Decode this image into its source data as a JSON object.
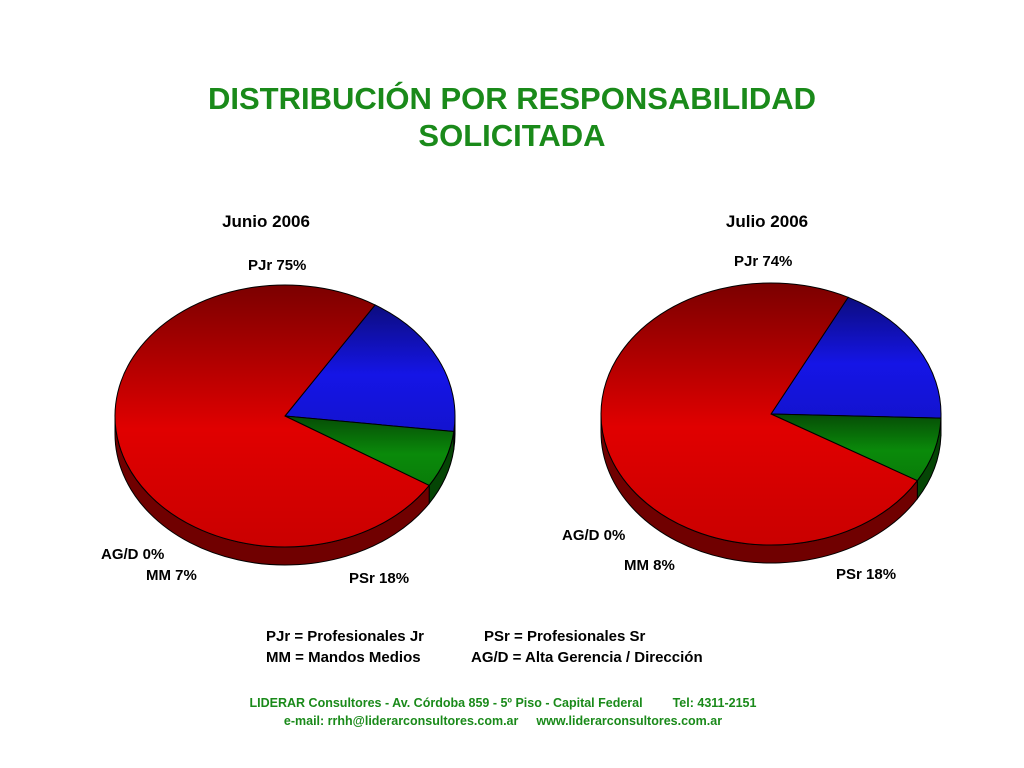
{
  "title_line1": "DISTRIBUCIÓN POR RESPONSABILIDAD",
  "title_line2": "SOLICITADA",
  "chart_data": [
    {
      "type": "pie",
      "title": "Junio 2006",
      "labels": [
        "PJr",
        "PSr",
        "MM",
        "AG/D"
      ],
      "values": [
        75,
        18,
        7,
        0
      ],
      "value_labels": [
        "PJr 75%",
        "PSr 18%",
        "MM 7%",
        "AG/D 0%"
      ],
      "colors": [
        "#e00000",
        "#1515e6",
        "#0a8a0a",
        "#888888"
      ]
    },
    {
      "type": "pie",
      "title": "Julio  2006",
      "labels": [
        "PJr",
        "PSr",
        "MM",
        "AG/D"
      ],
      "values": [
        74,
        18,
        8,
        0
      ],
      "value_labels": [
        "PJr 74%",
        "PSr 18%",
        "MM 8%",
        "AG/D 0%"
      ],
      "colors": [
        "#e00000",
        "#1515e6",
        "#0a8a0a",
        "#888888"
      ]
    }
  ],
  "legend": {
    "row1_a": "PJr = Profesionales Jr",
    "row1_b": "PSr = Profesionales Sr",
    "row2_a": "MM = Mandos Medios",
    "row2_b": "AG/D = Alta Gerencia / Dirección"
  },
  "footer": {
    "line1_a": "LIDERAR Consultores - Av. Córdoba 859 - 5º Piso - Capital Federal",
    "line1_b": "Tel: 4311-2151",
    "line2_a": "e-mail: rrhh@liderarconsultores.com.ar",
    "line2_b": "www.liderarconsultores.com.ar"
  }
}
